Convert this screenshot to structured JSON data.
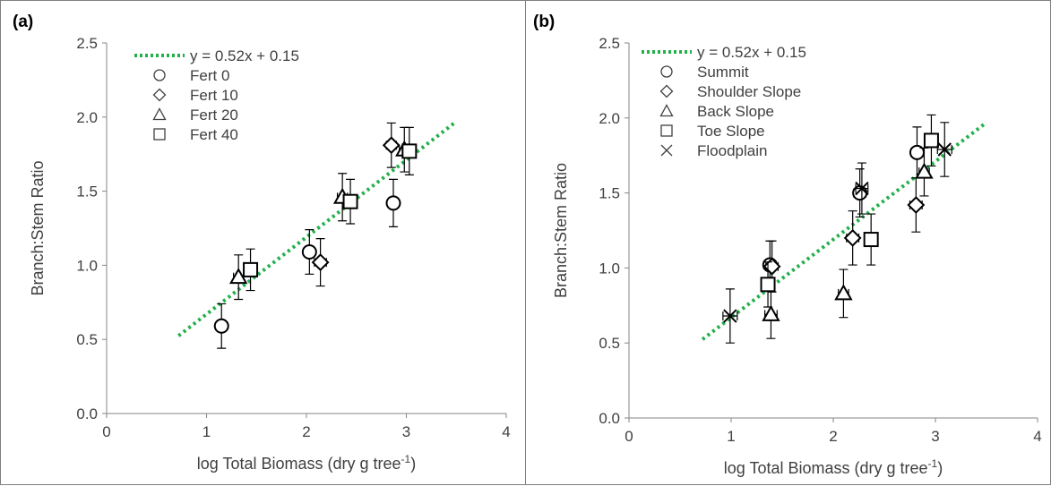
{
  "chart_data": [
    {
      "type": "scatter",
      "panel_label": "(a)",
      "xlabel": "log Total Biomass (dry g tree",
      "xlabel_sup": "-1",
      "xlabel_end": ")",
      "ylabel": "Branch:Stem Ratio",
      "xlim": [
        0,
        4
      ],
      "ylim": [
        0,
        2.5
      ],
      "x_ticks": [
        "0",
        "1",
        "2",
        "3",
        "4"
      ],
      "y_ticks": [
        "0.0",
        "0.5",
        "1.0",
        "1.5",
        "2.0",
        "2.5"
      ],
      "grid": false,
      "legend_position": "top-left",
      "fit": {
        "label": "y = 0.52x + 0.15",
        "slope": 0.52,
        "intercept": 0.15,
        "x_range": [
          0.72,
          3.48
        ],
        "color": "#22b04b"
      },
      "series": [
        {
          "name": "Fert 0",
          "marker": "circle",
          "points": [
            {
              "x": 1.15,
              "y": 0.59,
              "yerr": 0.15,
              "xerr": 0.04
            },
            {
              "x": 2.03,
              "y": 1.09,
              "yerr": 0.15,
              "xerr": 0.05
            },
            {
              "x": 2.87,
              "y": 1.42,
              "yerr": 0.16,
              "xerr": 0.05
            }
          ]
        },
        {
          "name": "Fert 10",
          "marker": "diamond",
          "points": [
            {
              "x": 2.14,
              "y": 1.02,
              "yerr": 0.16,
              "xerr": 0.06
            },
            {
              "x": 2.85,
              "y": 1.81,
              "yerr": 0.15,
              "xerr": 0.05
            }
          ]
        },
        {
          "name": "Fert 20",
          "marker": "triangle",
          "points": [
            {
              "x": 1.32,
              "y": 0.92,
              "yerr": 0.15,
              "xerr": 0.05
            },
            {
              "x": 2.36,
              "y": 1.46,
              "yerr": 0.16,
              "xerr": 0.05
            },
            {
              "x": 2.98,
              "y": 1.78,
              "yerr": 0.15,
              "xerr": 0.05
            }
          ]
        },
        {
          "name": "Fert 40",
          "marker": "square",
          "points": [
            {
              "x": 1.44,
              "y": 0.97,
              "yerr": 0.14,
              "xerr": 0.05
            },
            {
              "x": 2.44,
              "y": 1.43,
              "yerr": 0.15,
              "xerr": 0.06
            },
            {
              "x": 3.03,
              "y": 1.77,
              "yerr": 0.16,
              "xerr": 0.06
            }
          ]
        }
      ]
    },
    {
      "type": "scatter",
      "panel_label": "(b)",
      "xlabel": "log Total Biomass (dry g tree",
      "xlabel_sup": "-1",
      "xlabel_end": ")",
      "ylabel": "Branch:Stem Ratio",
      "xlim": [
        0,
        4
      ],
      "ylim": [
        0,
        2.5
      ],
      "x_ticks": [
        "0",
        "1",
        "2",
        "3",
        "4"
      ],
      "y_ticks": [
        "0.0",
        "0.5",
        "1.0",
        "1.5",
        "2.0",
        "2.5"
      ],
      "grid": false,
      "legend_position": "top-left",
      "fit": {
        "label": "y = 0.52x + 0.15",
        "slope": 0.52,
        "intercept": 0.15,
        "x_range": [
          0.72,
          3.48
        ],
        "color": "#22b04b"
      },
      "series": [
        {
          "name": "Summit",
          "marker": "circle",
          "points": [
            {
              "x": 1.38,
              "y": 1.02,
              "yerr": 0.16,
              "xerr": 0.06
            },
            {
              "x": 2.26,
              "y": 1.5,
              "yerr": 0.16,
              "xerr": 0.06
            },
            {
              "x": 2.82,
              "y": 1.77,
              "yerr": 0.17,
              "xerr": 0.06
            }
          ]
        },
        {
          "name": "Shoulder Slope",
          "marker": "diamond",
          "points": [
            {
              "x": 1.4,
              "y": 1.01,
              "yerr": 0.17,
              "xerr": 0.06
            },
            {
              "x": 2.19,
              "y": 1.2,
              "yerr": 0.18,
              "xerr": 0.06
            },
            {
              "x": 2.81,
              "y": 1.42,
              "yerr": 0.18,
              "xerr": 0.06
            }
          ]
        },
        {
          "name": "Back Slope",
          "marker": "triangle",
          "points": [
            {
              "x": 1.39,
              "y": 0.69,
              "yerr": 0.16,
              "xerr": 0.06
            },
            {
              "x": 2.1,
              "y": 0.83,
              "yerr": 0.16,
              "xerr": 0.05
            },
            {
              "x": 2.89,
              "y": 1.64,
              "yerr": 0.16,
              "xerr": 0.05
            }
          ]
        },
        {
          "name": "Toe Slope",
          "marker": "square",
          "points": [
            {
              "x": 1.36,
              "y": 0.89,
              "yerr": 0.15,
              "xerr": 0.06
            },
            {
              "x": 2.37,
              "y": 1.19,
              "yerr": 0.17,
              "xerr": 0.06
            },
            {
              "x": 2.96,
              "y": 1.85,
              "yerr": 0.17,
              "xerr": 0.06
            }
          ]
        },
        {
          "name": "Floodplain",
          "marker": "x",
          "points": [
            {
              "x": 0.99,
              "y": 0.68,
              "yerr": 0.18,
              "xerr": 0.07
            },
            {
              "x": 2.28,
              "y": 1.53,
              "yerr": 0.17,
              "xerr": 0.06
            },
            {
              "x": 3.09,
              "y": 1.79,
              "yerr": 0.18,
              "xerr": 0.07
            }
          ]
        }
      ]
    }
  ]
}
